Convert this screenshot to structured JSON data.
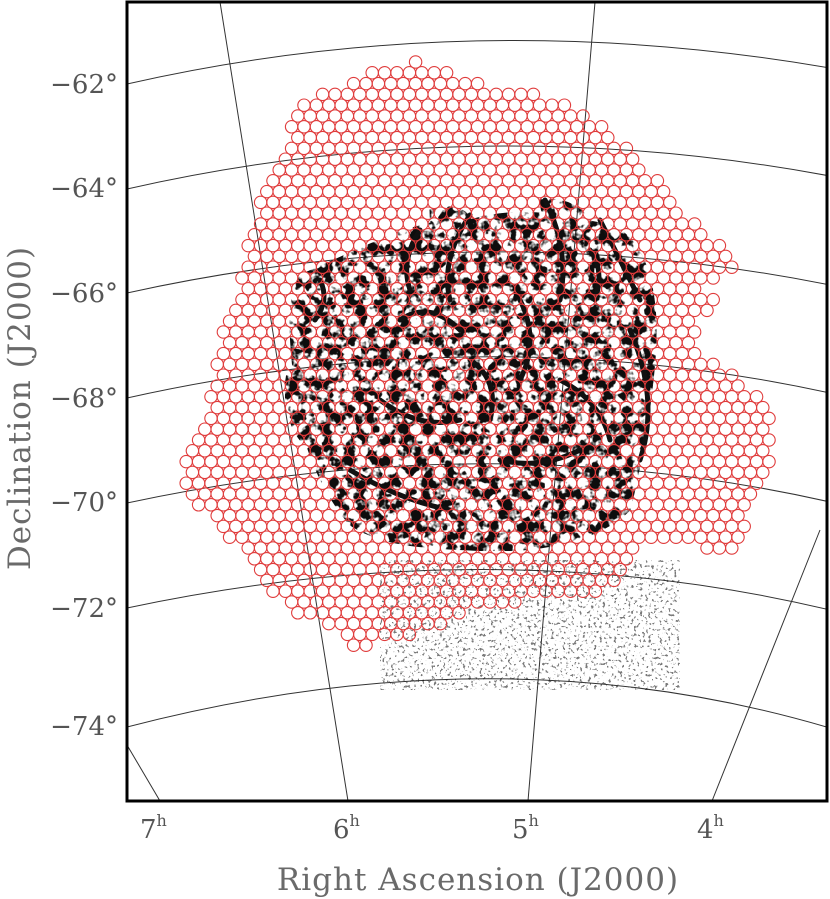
{
  "xlabel": "Right Ascension (J2000)",
  "ylabel": "Declination (J2000)",
  "dec_ticks": [
    "−62°",
    "−64°",
    "−66°",
    "−68°",
    "−70°",
    "−72°",
    "−74°"
  ],
  "ra_ticks": [
    {
      "hour": "7",
      "sup": "h"
    },
    {
      "hour": "6",
      "sup": "h"
    },
    {
      "hour": "5",
      "sup": "h"
    },
    {
      "hour": "4",
      "sup": "h"
    }
  ],
  "colors": {
    "pointing_circles": "#e03c3c",
    "emission": "#111111",
    "grid": "#333333",
    "frame": "#000000"
  },
  "icons": {
    "pointings": "hexagonal-circle-grid",
    "emission": "dark-cloud-structure"
  }
}
